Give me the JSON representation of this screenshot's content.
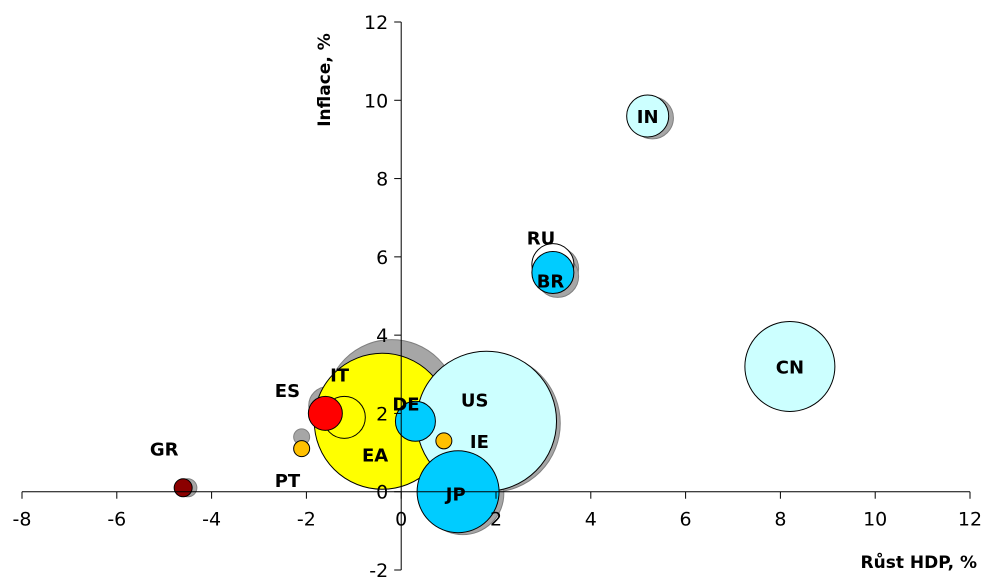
{
  "chart_data": {
    "type": "scatter",
    "title": "",
    "xlabel": "Růst HDP, %",
    "ylabel": "Inflace, %",
    "xlim": [
      -8,
      12
    ],
    "ylim": [
      -2,
      12
    ],
    "x_ticks": [
      -8,
      -6,
      -4,
      -2,
      0,
      2,
      4,
      6,
      8,
      10,
      12
    ],
    "y_ticks": [
      -2,
      0,
      2,
      4,
      6,
      8,
      10,
      12
    ],
    "x_tick_labels": [
      "-8",
      "-6",
      "-4",
      "-2",
      "0",
      "2",
      "4",
      "6",
      "8",
      "10",
      "12"
    ],
    "y_tick_labels": [
      "-2",
      "0",
      "2",
      "4",
      "6",
      "8",
      "10",
      "12"
    ],
    "grid": false,
    "points": [
      {
        "label": "EA",
        "x": -0.4,
        "y": 1.8,
        "radius": 68,
        "color": "#ffff00",
        "shadow": {
          "x": -0.2,
          "y": 2.2,
          "radius": 66
        },
        "label_pos": [
          -0.55,
          0.95
        ]
      },
      {
        "label": "US",
        "x": 1.8,
        "y": 1.8,
        "radius": 70,
        "color": "#ccffff",
        "shadow": {
          "x": 1.9,
          "y": 1.75,
          "radius": 69
        },
        "label_pos": [
          1.55,
          2.35
        ]
      },
      {
        "label": "DE",
        "x": 0.3,
        "y": 1.8,
        "radius": 20,
        "color": "#00ccff",
        "shadow": {
          "x": 0.35,
          "y": 1.9,
          "radius": 20
        },
        "label_pos": [
          0.1,
          2.25
        ]
      },
      {
        "label": "JP",
        "x": 1.2,
        "y": 0.0,
        "radius": 41,
        "color": "#00ccff",
        "shadow": {
          "x": 1.3,
          "y": -0.05,
          "radius": 41
        },
        "label_pos": [
          1.15,
          -0.05
        ]
      },
      {
        "label": "IE",
        "x": 0.9,
        "y": 1.3,
        "radius": 8,
        "color": "#ffc000",
        "shadow": null,
        "label_pos": [
          1.65,
          1.3
        ]
      },
      {
        "label": "IT",
        "x": -1.2,
        "y": 1.9,
        "radius": 21,
        "color": "#ffff00",
        "shadow": {
          "x": -1.55,
          "y": 2.2,
          "radius": 19
        },
        "label_pos": [
          -1.3,
          3.0
        ]
      },
      {
        "label": "ES",
        "x": -1.6,
        "y": 2.0,
        "radius": 17,
        "color": "#ff0000",
        "shadow": null,
        "label_pos": [
          -2.4,
          2.6
        ]
      },
      {
        "label": "PT",
        "x": -2.1,
        "y": 1.1,
        "radius": 8,
        "color": "#ffc000",
        "shadow": {
          "x": -2.1,
          "y": 1.4,
          "radius": 8
        },
        "label_pos": [
          -2.4,
          0.3
        ]
      },
      {
        "label": "GR",
        "x": -4.6,
        "y": 0.1,
        "radius": 9,
        "color": "#8b0000",
        "shadow": {
          "x": -4.5,
          "y": 0.1,
          "radius": 9
        },
        "label_pos": [
          -5.0,
          1.1
        ]
      },
      {
        "label": "RU",
        "x": 3.2,
        "y": 5.8,
        "radius": 21,
        "color": "#ffffff",
        "shadow": {
          "x": 3.3,
          "y": 5.7,
          "radius": 21
        },
        "label_pos": [
          2.95,
          6.5
        ]
      },
      {
        "label": "BR",
        "x": 3.2,
        "y": 5.6,
        "radius": 21,
        "color": "#00ccff",
        "shadow": {
          "x": 3.3,
          "y": 5.5,
          "radius": 21
        },
        "label_pos": [
          3.15,
          5.4
        ]
      },
      {
        "label": "IN",
        "x": 5.2,
        "y": 9.6,
        "radius": 21,
        "color": "#ccffff",
        "shadow": {
          "x": 5.3,
          "y": 9.55,
          "radius": 21
        },
        "label_pos": [
          5.2,
          9.6
        ]
      },
      {
        "label": "CN",
        "x": 8.2,
        "y": 3.2,
        "radius": 45,
        "color": "#ccffff",
        "shadow": null,
        "label_pos": [
          8.2,
          3.2
        ]
      }
    ]
  }
}
